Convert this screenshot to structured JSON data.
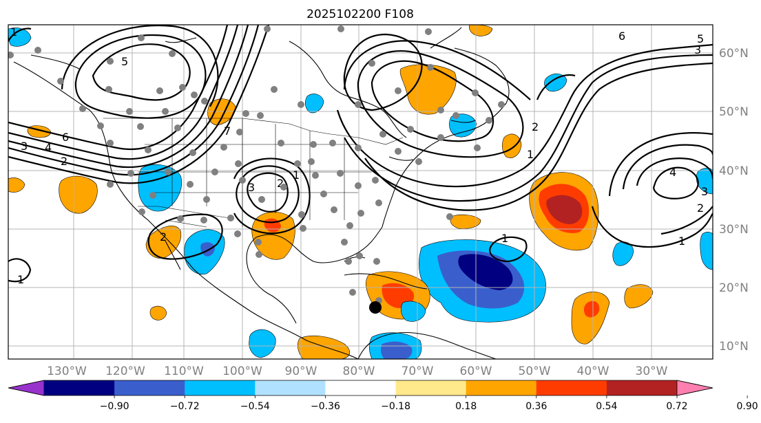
{
  "title": "2025102200 F108",
  "longitude_labels": [
    "130°W",
    "120°W",
    "110°W",
    "100°W",
    "90°W",
    "80°W",
    "70°W",
    "60°W",
    "50°W",
    "40°W",
    "30°W"
  ],
  "latitude_labels": [
    "60°N",
    "50°N",
    "40°N",
    "30°N",
    "20°N",
    "10°N"
  ],
  "colorbar": {
    "labels": [
      "−0.90",
      "−0.72",
      "−0.54",
      "−0.36",
      "−0.18",
      "0.18",
      "0.36",
      "0.54",
      "0.72",
      "0.90"
    ],
    "colors": [
      "#9932cc",
      "#000080",
      "#3a5fcd",
      "#00bfff",
      "#b0e2ff",
      "#ffffff",
      "#ffe98a",
      "#ffa500",
      "#ff3c00",
      "#b22222",
      "#ff7fb0"
    ]
  },
  "contour_labels": [
    "6",
    "5",
    "4",
    "3",
    "2",
    "1",
    "6",
    "5",
    "3",
    "2",
    "1",
    "4",
    "3",
    "2",
    "1",
    "7",
    "3",
    "2",
    "1",
    "1",
    "2",
    "1"
  ],
  "colors": {
    "frame": "#000000",
    "grid": "#b4b4b4",
    "station": "#808080"
  }
}
